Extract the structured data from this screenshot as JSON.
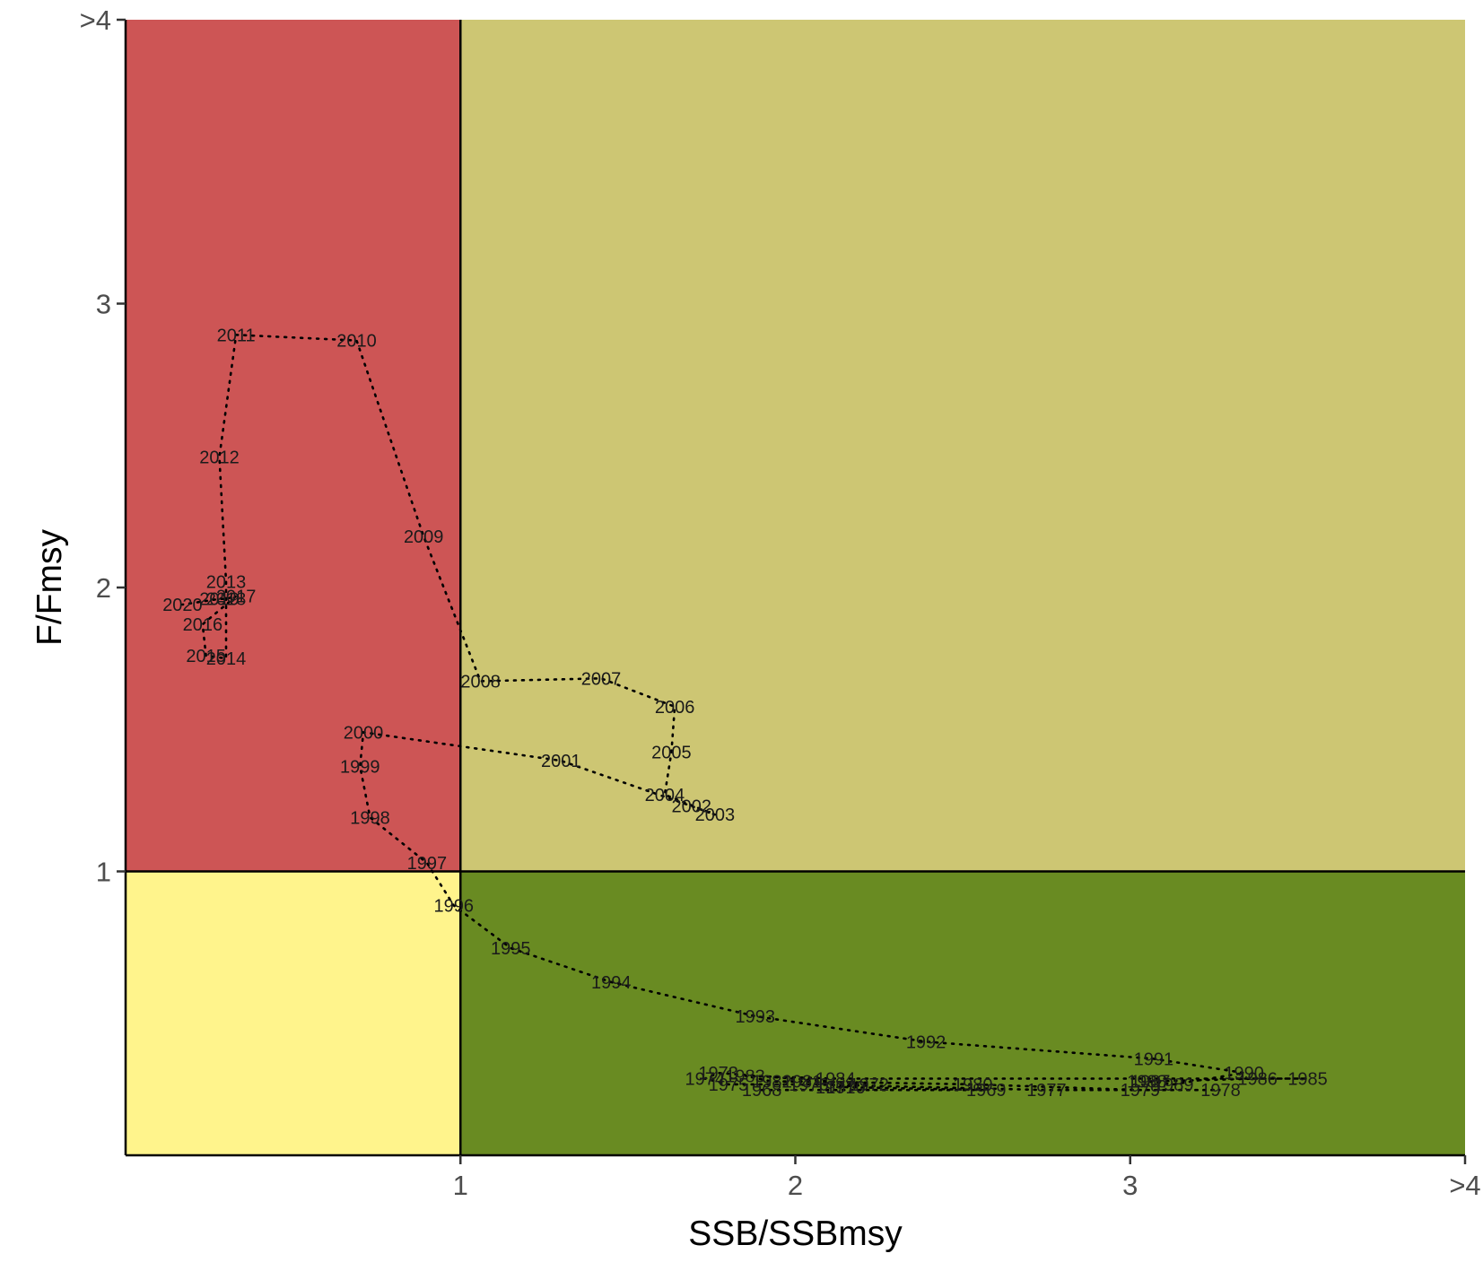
{
  "chart_data": {
    "type": "scatter",
    "xlabel": "SSB/SSBmsy",
    "ylabel": "F/Fmsy",
    "xlim": [
      0,
      4
    ],
    "ylim": [
      0,
      4
    ],
    "x_ticks": [
      {
        "value": 1,
        "label": "1"
      },
      {
        "value": 2,
        "label": "2"
      },
      {
        "value": 3,
        "label": "3"
      },
      {
        "value": 4,
        "label": ">4"
      }
    ],
    "y_ticks": [
      {
        "value": 1,
        "label": "1"
      },
      {
        "value": 2,
        "label": "2"
      },
      {
        "value": 3,
        "label": "3"
      },
      {
        "value": 4,
        "label": ">4"
      }
    ],
    "reference_lines": {
      "x": 1,
      "y": 1
    },
    "quadrants": [
      {
        "name": "overfished-overfishing",
        "x": [
          0,
          1
        ],
        "y": [
          1,
          4
        ],
        "color": "#CD5555"
      },
      {
        "name": "healthy-overfishing",
        "x": [
          1,
          4
        ],
        "y": [
          1,
          4
        ],
        "color": "#CDC673"
      },
      {
        "name": "overfished-no-overfishing",
        "x": [
          0,
          1
        ],
        "y": [
          0,
          1
        ],
        "color": "#FFF48C"
      },
      {
        "name": "healthy-no-overfishing",
        "x": [
          1,
          4
        ],
        "y": [
          0,
          1
        ],
        "color": "#698B22"
      }
    ],
    "grid": false,
    "trajectory_style": "dotted",
    "points": [
      {
        "year": "1968",
        "x": 1.9,
        "y": 0.23
      },
      {
        "year": "1969",
        "x": 2.57,
        "y": 0.23
      },
      {
        "year": "1970",
        "x": 2.15,
        "y": 0.24
      },
      {
        "year": "1971",
        "x": 2.12,
        "y": 0.24
      },
      {
        "year": "1972",
        "x": 2.22,
        "y": 0.25
      },
      {
        "year": "1973",
        "x": 1.77,
        "y": 0.29
      },
      {
        "year": "1974",
        "x": 1.73,
        "y": 0.27
      },
      {
        "year": "1975",
        "x": 1.8,
        "y": 0.25
      },
      {
        "year": "1976",
        "x": 2.04,
        "y": 0.25
      },
      {
        "year": "1977",
        "x": 2.75,
        "y": 0.23
      },
      {
        "year": "1978",
        "x": 3.27,
        "y": 0.23
      },
      {
        "year": "1979",
        "x": 3.03,
        "y": 0.23
      },
      {
        "year": "1980",
        "x": 2.53,
        "y": 0.25
      },
      {
        "year": "1981",
        "x": 2.02,
        "y": 0.26
      },
      {
        "year": "1982",
        "x": 1.93,
        "y": 0.26
      },
      {
        "year": "1983",
        "x": 1.85,
        "y": 0.28
      },
      {
        "year": "1984",
        "x": 2.12,
        "y": 0.27
      },
      {
        "year": "1985",
        "x": 3.53,
        "y": 0.27
      },
      {
        "year": "1986",
        "x": 3.38,
        "y": 0.27
      },
      {
        "year": "1987",
        "x": 3.06,
        "y": 0.26
      },
      {
        "year": "1988",
        "x": 3.05,
        "y": 0.26
      },
      {
        "year": "1989",
        "x": 3.13,
        "y": 0.25
      },
      {
        "year": "1990",
        "x": 3.34,
        "y": 0.29
      },
      {
        "year": "1991",
        "x": 3.07,
        "y": 0.34
      },
      {
        "year": "1992",
        "x": 2.39,
        "y": 0.4
      },
      {
        "year": "1993",
        "x": 1.88,
        "y": 0.49
      },
      {
        "year": "1994",
        "x": 1.45,
        "y": 0.61
      },
      {
        "year": "1995",
        "x": 1.15,
        "y": 0.73
      },
      {
        "year": "1996",
        "x": 0.98,
        "y": 0.88
      },
      {
        "year": "1997",
        "x": 0.9,
        "y": 1.03
      },
      {
        "year": "1998",
        "x": 0.73,
        "y": 1.19
      },
      {
        "year": "1999",
        "x": 0.7,
        "y": 1.37
      },
      {
        "year": "2000",
        "x": 0.71,
        "y": 1.49
      },
      {
        "year": "2001",
        "x": 1.3,
        "y": 1.39
      },
      {
        "year": "2002",
        "x": 1.69,
        "y": 1.23
      },
      {
        "year": "2003",
        "x": 1.76,
        "y": 1.2
      },
      {
        "year": "2004",
        "x": 1.61,
        "y": 1.27
      },
      {
        "year": "2005",
        "x": 1.63,
        "y": 1.42
      },
      {
        "year": "2006",
        "x": 1.64,
        "y": 1.58
      },
      {
        "year": "2007",
        "x": 1.42,
        "y": 1.68
      },
      {
        "year": "2008",
        "x": 1.06,
        "y": 1.67
      },
      {
        "year": "2009",
        "x": 0.89,
        "y": 2.18
      },
      {
        "year": "2010",
        "x": 0.69,
        "y": 2.87
      },
      {
        "year": "2011",
        "x": 0.33,
        "y": 2.89
      },
      {
        "year": "2012",
        "x": 0.28,
        "y": 2.46
      },
      {
        "year": "2013",
        "x": 0.3,
        "y": 2.02
      },
      {
        "year": "2014",
        "x": 0.3,
        "y": 1.75
      },
      {
        "year": "2015",
        "x": 0.24,
        "y": 1.76
      },
      {
        "year": "2016",
        "x": 0.23,
        "y": 1.87
      },
      {
        "year": "2017",
        "x": 0.33,
        "y": 1.97
      },
      {
        "year": "2018",
        "x": 0.3,
        "y": 1.96
      },
      {
        "year": "2019",
        "x": 0.28,
        "y": 1.96
      },
      {
        "year": "2020",
        "x": 0.17,
        "y": 1.94
      }
    ]
  }
}
